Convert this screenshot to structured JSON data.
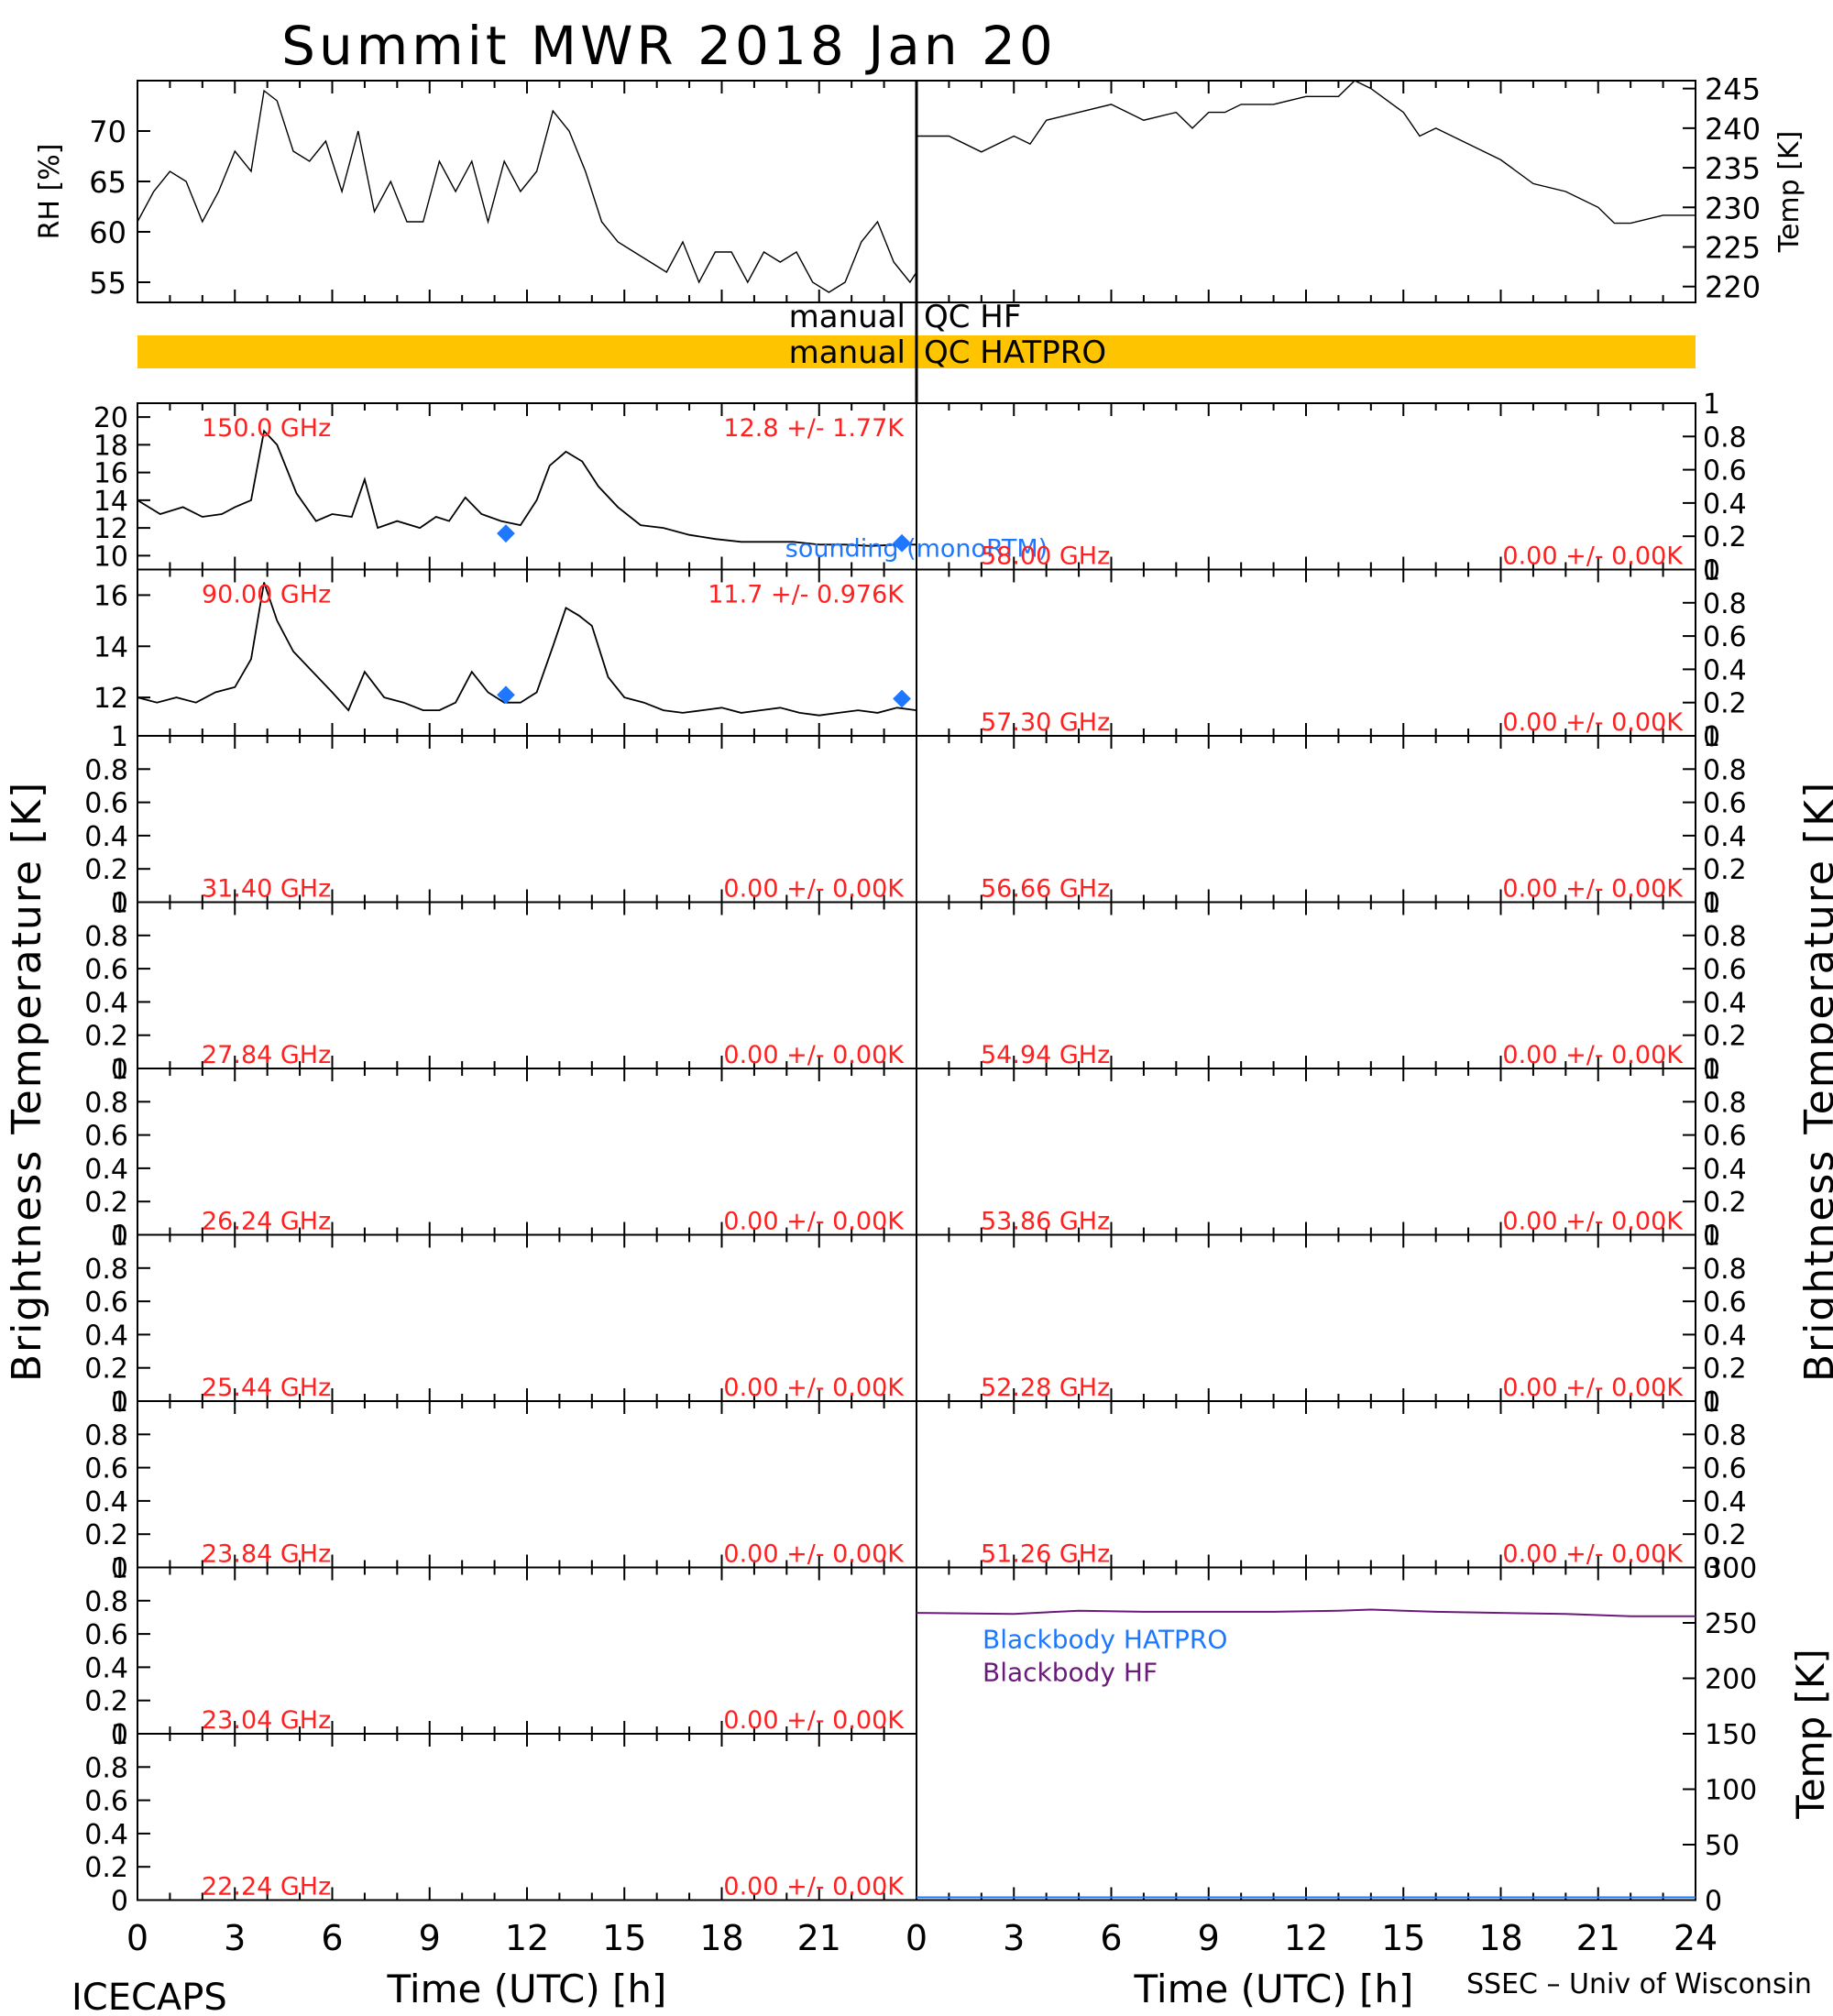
{
  "title": "Summit MWR 2018 Jan 20",
  "footer": {
    "left": "ICECAPS",
    "right": "SSEC – Univ of Wisconsin"
  },
  "qc": {
    "hf_prefix": "manual",
    "hf_label": "QC HF",
    "hatpro_prefix": "manual",
    "hatpro_label": "QC HATPRO",
    "hatpro_color": "#ffc400"
  },
  "colors": {
    "trace": "#000000",
    "stats": "#ff2020",
    "sounding": "#1e78ff",
    "bb_hatpro": "#1e78ff",
    "bb_hf": "#6a1a7a"
  },
  "chart_data": [
    {
      "type": "line",
      "panel": "rh",
      "ylabel": "RH [%]",
      "ylim": [
        53,
        75
      ],
      "yticks": [
        55,
        60,
        65,
        70
      ],
      "xlim": [
        0,
        24
      ],
      "x": [
        0,
        0.5,
        1,
        1.5,
        2,
        2.5,
        3,
        3.5,
        3.9,
        4.3,
        4.8,
        5.3,
        5.8,
        6.3,
        6.8,
        7.3,
        7.8,
        8.3,
        8.8,
        9.3,
        9.8,
        10.3,
        10.8,
        11.3,
        11.8,
        12.3,
        12.8,
        13.3,
        13.8,
        14.3,
        14.8,
        15.3,
        15.8,
        16.3,
        16.8,
        17.3,
        17.8,
        18.3,
        18.8,
        19.3,
        19.8,
        20.3,
        20.8,
        21.3,
        21.8,
        22.3,
        22.8,
        23.3,
        23.8,
        24
      ],
      "y": [
        61,
        64,
        66,
        65,
        61,
        64,
        68,
        66,
        74,
        73,
        68,
        67,
        69,
        64,
        70,
        62,
        65,
        61,
        61,
        67,
        64,
        67,
        61,
        67,
        64,
        66,
        72,
        70,
        66,
        61,
        59,
        58,
        57,
        56,
        59,
        55,
        58,
        58,
        55,
        58,
        57,
        58,
        55,
        54,
        55,
        59,
        61,
        57,
        55,
        56
      ]
    },
    {
      "type": "line",
      "panel": "temp",
      "ylabel": "Temp [K]",
      "ylim": [
        218,
        246
      ],
      "yticks": [
        220,
        225,
        230,
        235,
        240,
        245
      ],
      "xlim": [
        0,
        24
      ],
      "x": [
        0,
        1,
        2,
        3,
        3.5,
        4,
        5,
        6,
        7,
        8,
        8.5,
        9,
        9.5,
        10,
        11,
        12,
        13,
        13.5,
        14,
        15,
        15.5,
        16,
        17,
        17.5,
        18,
        19,
        20,
        21,
        21.5,
        22,
        23,
        24
      ],
      "y": [
        239,
        239,
        237,
        239,
        238,
        241,
        242,
        243,
        241,
        242,
        240,
        242,
        242,
        243,
        243,
        244,
        244,
        246,
        245,
        242,
        239,
        240,
        238,
        237,
        236,
        233,
        232,
        230,
        228,
        228,
        229,
        229
      ]
    },
    {
      "type": "line",
      "panel": "tb",
      "freq": "150.0 GHz",
      "stats": "12.8 +/-  1.77K",
      "ylim": [
        9,
        21
      ],
      "yticks": [
        10,
        12,
        14,
        16,
        18,
        20
      ],
      "xlim": [
        0,
        24
      ],
      "x": [
        0,
        0.7,
        1.4,
        2,
        2.6,
        3,
        3.5,
        3.9,
        4.3,
        4.9,
        5.5,
        6,
        6.6,
        7,
        7.4,
        8,
        8.7,
        9.2,
        9.6,
        10.1,
        10.6,
        11.2,
        11.8,
        12.3,
        12.7,
        13.2,
        13.7,
        14.2,
        14.8,
        15.5,
        16.2,
        17,
        17.8,
        18.6,
        19.4,
        20.2,
        21,
        21.8,
        22.6,
        23.4,
        24
      ],
      "y": [
        14,
        13,
        13.5,
        12.8,
        13,
        13.5,
        14,
        19,
        18,
        14.5,
        12.5,
        13,
        12.8,
        15.5,
        12,
        12.5,
        12,
        12.8,
        12.5,
        14.2,
        13,
        12.5,
        12.2,
        14,
        16.5,
        17.5,
        16.8,
        15,
        13.5,
        12.2,
        12,
        11.5,
        11.2,
        11,
        11,
        11,
        10.8,
        10.8,
        10.7,
        10.8,
        10.8
      ],
      "sounding": {
        "label": "sounding (monoRTM)",
        "x": [
          11.35,
          23.55
        ],
        "y": [
          11.6,
          10.9
        ]
      }
    },
    {
      "type": "line",
      "panel": "tb",
      "freq": "90.00 GHz",
      "stats": "11.7 +/- 0.976K",
      "ylim": [
        10.5,
        17
      ],
      "yticks": [
        12,
        14,
        16
      ],
      "xlim": [
        0,
        24
      ],
      "x": [
        0,
        0.6,
        1.2,
        1.8,
        2.4,
        3,
        3.5,
        3.9,
        4.3,
        4.8,
        5.4,
        6,
        6.5,
        7,
        7.6,
        8.2,
        8.8,
        9.3,
        9.8,
        10.3,
        10.8,
        11.3,
        11.8,
        12.3,
        12.8,
        13.2,
        13.6,
        14,
        14.5,
        15,
        15.6,
        16.2,
        16.8,
        17.4,
        18,
        18.6,
        19.2,
        19.8,
        20.4,
        21,
        21.6,
        22.2,
        22.8,
        23.4,
        24
      ],
      "y": [
        12,
        11.8,
        12,
        11.8,
        12.2,
        12.4,
        13.5,
        16.5,
        15,
        13.8,
        13,
        12.2,
        11.5,
        13,
        12,
        11.8,
        11.5,
        11.5,
        11.8,
        13,
        12.2,
        11.8,
        11.8,
        12.2,
        14,
        15.5,
        15.2,
        14.8,
        12.8,
        12,
        11.8,
        11.5,
        11.4,
        11.5,
        11.6,
        11.4,
        11.5,
        11.6,
        11.4,
        11.3,
        11.4,
        11.5,
        11.4,
        11.6,
        11.5
      ],
      "sounding": {
        "x": [
          11.35,
          23.55
        ],
        "y": [
          12.1,
          11.95
        ]
      }
    },
    {
      "type": "line",
      "panel": "tb",
      "freq": "31.40 GHz",
      "stats": "0.00 +/- 0.00K",
      "ylim": [
        0,
        1
      ]
    },
    {
      "type": "line",
      "panel": "tb",
      "freq": "27.84 GHz",
      "stats": "0.00 +/- 0.00K",
      "ylim": [
        0,
        1
      ]
    },
    {
      "type": "line",
      "panel": "tb",
      "freq": "26.24 GHz",
      "stats": "0.00 +/- 0.00K",
      "ylim": [
        0,
        1
      ]
    },
    {
      "type": "line",
      "panel": "tb",
      "freq": "25.44 GHz",
      "stats": "0.00 +/- 0.00K",
      "ylim": [
        0,
        1
      ]
    },
    {
      "type": "line",
      "panel": "tb",
      "freq": "23.84 GHz",
      "stats": "0.00 +/- 0.00K",
      "ylim": [
        0,
        1
      ]
    },
    {
      "type": "line",
      "panel": "tb",
      "freq": "23.04 GHz",
      "stats": "0.00 +/- 0.00K",
      "ylim": [
        0,
        1
      ]
    },
    {
      "type": "line",
      "panel": "tb",
      "freq": "22.24 GHz",
      "stats": "0.00 +/- 0.00K",
      "ylim": [
        0,
        1
      ]
    },
    {
      "type": "line",
      "panel": "tb",
      "freq": "58.00 GHz",
      "stats": "0.00 +/- 0.00K",
      "ylim": [
        0,
        1
      ]
    },
    {
      "type": "line",
      "panel": "tb",
      "freq": "57.30 GHz",
      "stats": "0.00 +/- 0.00K",
      "ylim": [
        0,
        1
      ]
    },
    {
      "type": "line",
      "panel": "tb",
      "freq": "56.66 GHz",
      "stats": "0.00 +/- 0.00K",
      "ylim": [
        0,
        1
      ]
    },
    {
      "type": "line",
      "panel": "tb",
      "freq": "54.94 GHz",
      "stats": "0.00 +/- 0.00K",
      "ylim": [
        0,
        1
      ]
    },
    {
      "type": "line",
      "panel": "tb",
      "freq": "53.86 GHz",
      "stats": "0.00 +/- 0.00K",
      "ylim": [
        0,
        1
      ]
    },
    {
      "type": "line",
      "panel": "tb",
      "freq": "52.28 GHz",
      "stats": "0.00 +/- 0.00K",
      "ylim": [
        0,
        1
      ]
    },
    {
      "type": "line",
      "panel": "tb",
      "freq": "51.26 GHz",
      "stats": "0.00 +/- 0.00K",
      "ylim": [
        0,
        1
      ]
    },
    {
      "type": "line",
      "panel": "blackbody",
      "ylabel": "Temp [K]",
      "ylim": [
        0,
        300
      ],
      "yticks": [
        0,
        50,
        100,
        150,
        200,
        250,
        300
      ],
      "xlim": [
        0,
        24
      ],
      "series": [
        {
          "name": "Blackbody HATPRO",
          "x": [
            0,
            24
          ],
          "y": [
            0,
            0
          ]
        },
        {
          "name": "Blackbody HF",
          "x": [
            0,
            3,
            5,
            7,
            9,
            11,
            13,
            14,
            16,
            18,
            20,
            22,
            24
          ],
          "y": [
            259,
            258,
            261,
            260,
            260,
            260,
            261,
            262,
            260,
            259,
            258,
            256,
            256
          ]
        }
      ]
    },
    {
      "axes": {
        "xlabel": "Time (UTC) [h]",
        "xticks": [
          0,
          3,
          6,
          9,
          12,
          15,
          18,
          21
        ],
        "xticks_right": [
          0,
          3,
          6,
          9,
          12,
          15,
          18,
          21,
          24
        ],
        "tb_ylabel": "Brightness Temperature [K]",
        "unit_yticks": [
          0.0,
          0.2,
          0.4,
          0.6,
          0.8,
          1.0
        ]
      }
    }
  ]
}
